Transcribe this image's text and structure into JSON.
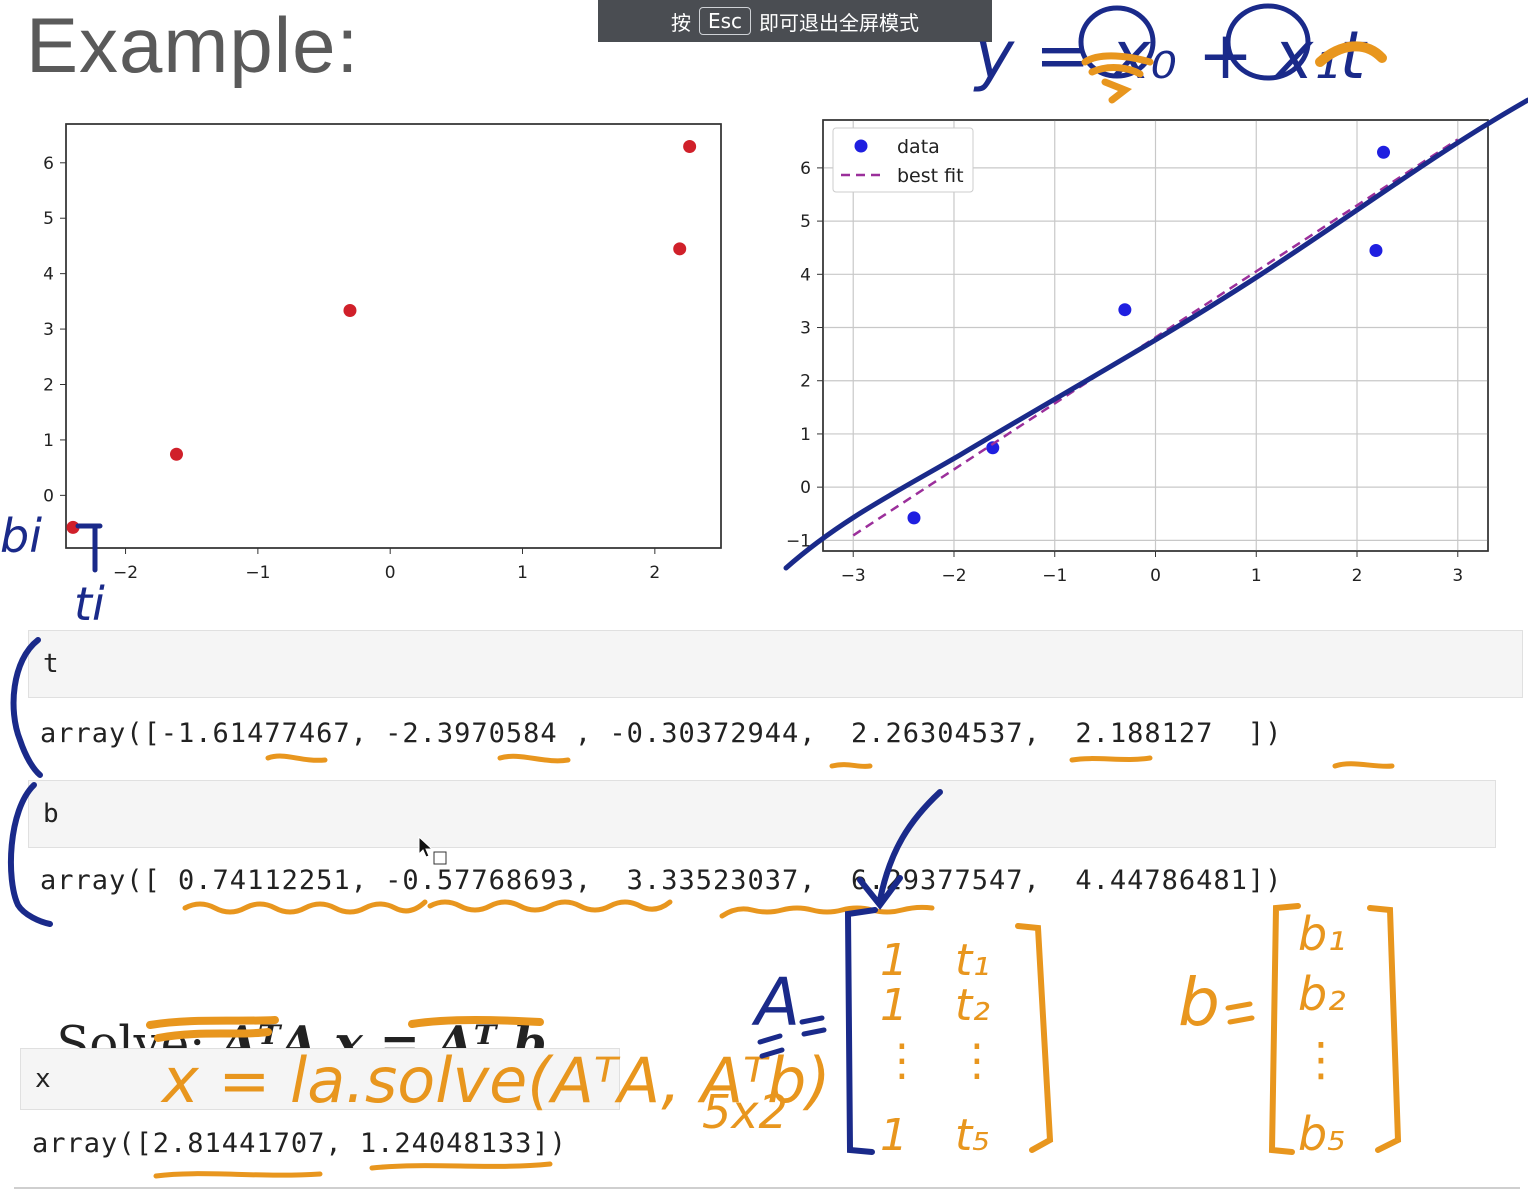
{
  "header": {
    "title": "Example:",
    "fullscreen_banner": {
      "pre": "按",
      "key": "Esc",
      "post": "即可退出全屏模式"
    }
  },
  "chart_data": [
    {
      "type": "scatter",
      "title": "",
      "xlabel": "",
      "ylabel": "",
      "xlim": [
        -2.45,
        2.5
      ],
      "ylim": [
        -0.95,
        6.7
      ],
      "xticks": [
        "−2",
        "−1",
        "0",
        "1",
        "2"
      ],
      "yticks": [
        "0",
        "1",
        "2",
        "3",
        "4",
        "5",
        "6"
      ],
      "grid": false,
      "point_color": "#d0202a",
      "points": [
        {
          "x": -2.397,
          "y": -0.578
        },
        {
          "x": -1.615,
          "y": 0.741
        },
        {
          "x": -0.304,
          "y": 3.335
        },
        {
          "x": 2.188,
          "y": 4.448
        },
        {
          "x": 2.263,
          "y": 6.294
        }
      ]
    },
    {
      "type": "scatter",
      "title": "",
      "xlabel": "",
      "ylabel": "",
      "xlim": [
        -3.3,
        3.3
      ],
      "ylim": [
        -1.2,
        6.9
      ],
      "xticks": [
        "−3",
        "−2",
        "−1",
        "0",
        "1",
        "2",
        "3"
      ],
      "yticks": [
        "−1",
        "0",
        "1",
        "2",
        "3",
        "4",
        "5",
        "6"
      ],
      "grid": true,
      "legend_position": "top-left",
      "series": [
        {
          "name": "data",
          "color": "#1f1fe0",
          "points": [
            {
              "x": -2.397,
              "y": -0.578
            },
            {
              "x": -1.615,
              "y": 0.741
            },
            {
              "x": -0.304,
              "y": 3.335
            },
            {
              "x": 2.188,
              "y": 4.448
            },
            {
              "x": 2.263,
              "y": 6.294
            }
          ]
        },
        {
          "name": "best fit",
          "color": "#9b2f9b",
          "style": "dashed",
          "line": [
            {
              "x": -3,
              "y": -0.907
            },
            {
              "x": 3,
              "y": 6.536
            }
          ]
        }
      ]
    }
  ],
  "cells": {
    "t_input": "t",
    "t_output": "array([-1.61477467, -2.3970584 , -0.30372944,  2.26304537,  2.188127  ])",
    "b_input": "b",
    "b_output": "array([ 0.74112251, -0.57768693,  3.33523037,  6.29377547,  4.44786481])",
    "x_input": "x",
    "x_output": "array([2.81441707, 1.24048133])"
  },
  "solve": {
    "prefix": "Solve: ",
    "equation": "AᵀA x = Aᵀ b"
  },
  "annotations": {
    "model": "y = x₀ + x₁t",
    "bi": "bi",
    "ti": "ti",
    "lasolve": "x = la.solve(AᵀA, Aᵀb)",
    "size": "5x2",
    "A_label": "A",
    "b_label": "b",
    "A_col1": [
      "1",
      "1",
      "⋮",
      "1"
    ],
    "A_col2": [
      "t₁",
      "t₂",
      "⋮",
      "t₅"
    ],
    "b_col": [
      "b₁",
      "b₂",
      "⋮",
      "b₅"
    ],
    "colors": {
      "orange": "#e8961e",
      "navy": "#1a2a8a"
    }
  }
}
